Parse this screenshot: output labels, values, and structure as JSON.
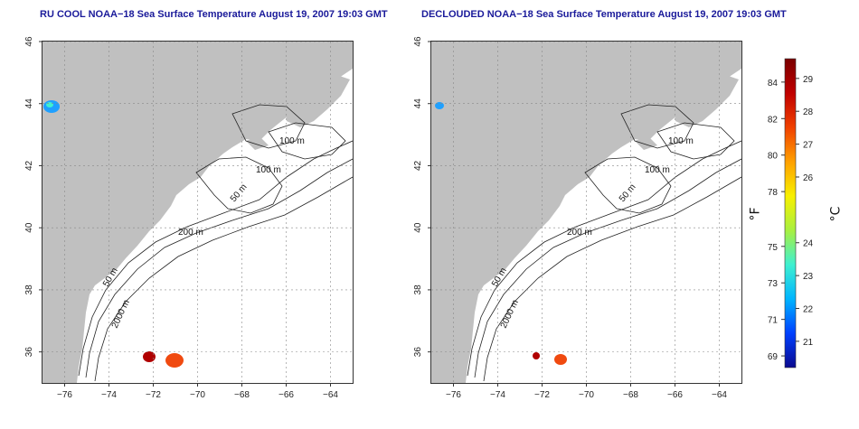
{
  "panels": [
    {
      "id": "left",
      "title": "RU COOL NOAA−18 Sea Surface Temperature August 19, 2007 19:03 GMT"
    },
    {
      "id": "right",
      "title": "DECLOUDED NOAA−18 Sea Surface Temperature August 19, 2007 19:03 GMT"
    }
  ],
  "axes": {
    "lon_range": [
      -77,
      -63
    ],
    "lat_range": [
      35,
      46
    ],
    "lon_ticks": [
      -76,
      -74,
      -72,
      -70,
      -68,
      -66,
      -64
    ],
    "lat_ticks": [
      36,
      38,
      40,
      42,
      44,
      46
    ],
    "grid": "dotted"
  },
  "contour_labels": [
    "100 m",
    "100 m",
    "50 m",
    "200 m",
    "50 m",
    "2000 m"
  ],
  "colorbar": {
    "fahrenheit_label": "°F",
    "celsius_label": "°C",
    "fahrenheit_ticks": [
      84,
      82,
      80,
      78,
      75,
      73,
      71,
      69
    ],
    "celsius_ticks": [
      29,
      28,
      27,
      26,
      24,
      23,
      22,
      21
    ],
    "colors": [
      "#0b0a8f",
      "#0040ff",
      "#00b5ff",
      "#3ff0d0",
      "#a8f040",
      "#f8f000",
      "#ffa000",
      "#f04000",
      "#c00000",
      "#7a0000"
    ],
    "celsius_min": 20.2,
    "celsius_max": 29.6
  },
  "land_color": "#c0c0c0"
}
